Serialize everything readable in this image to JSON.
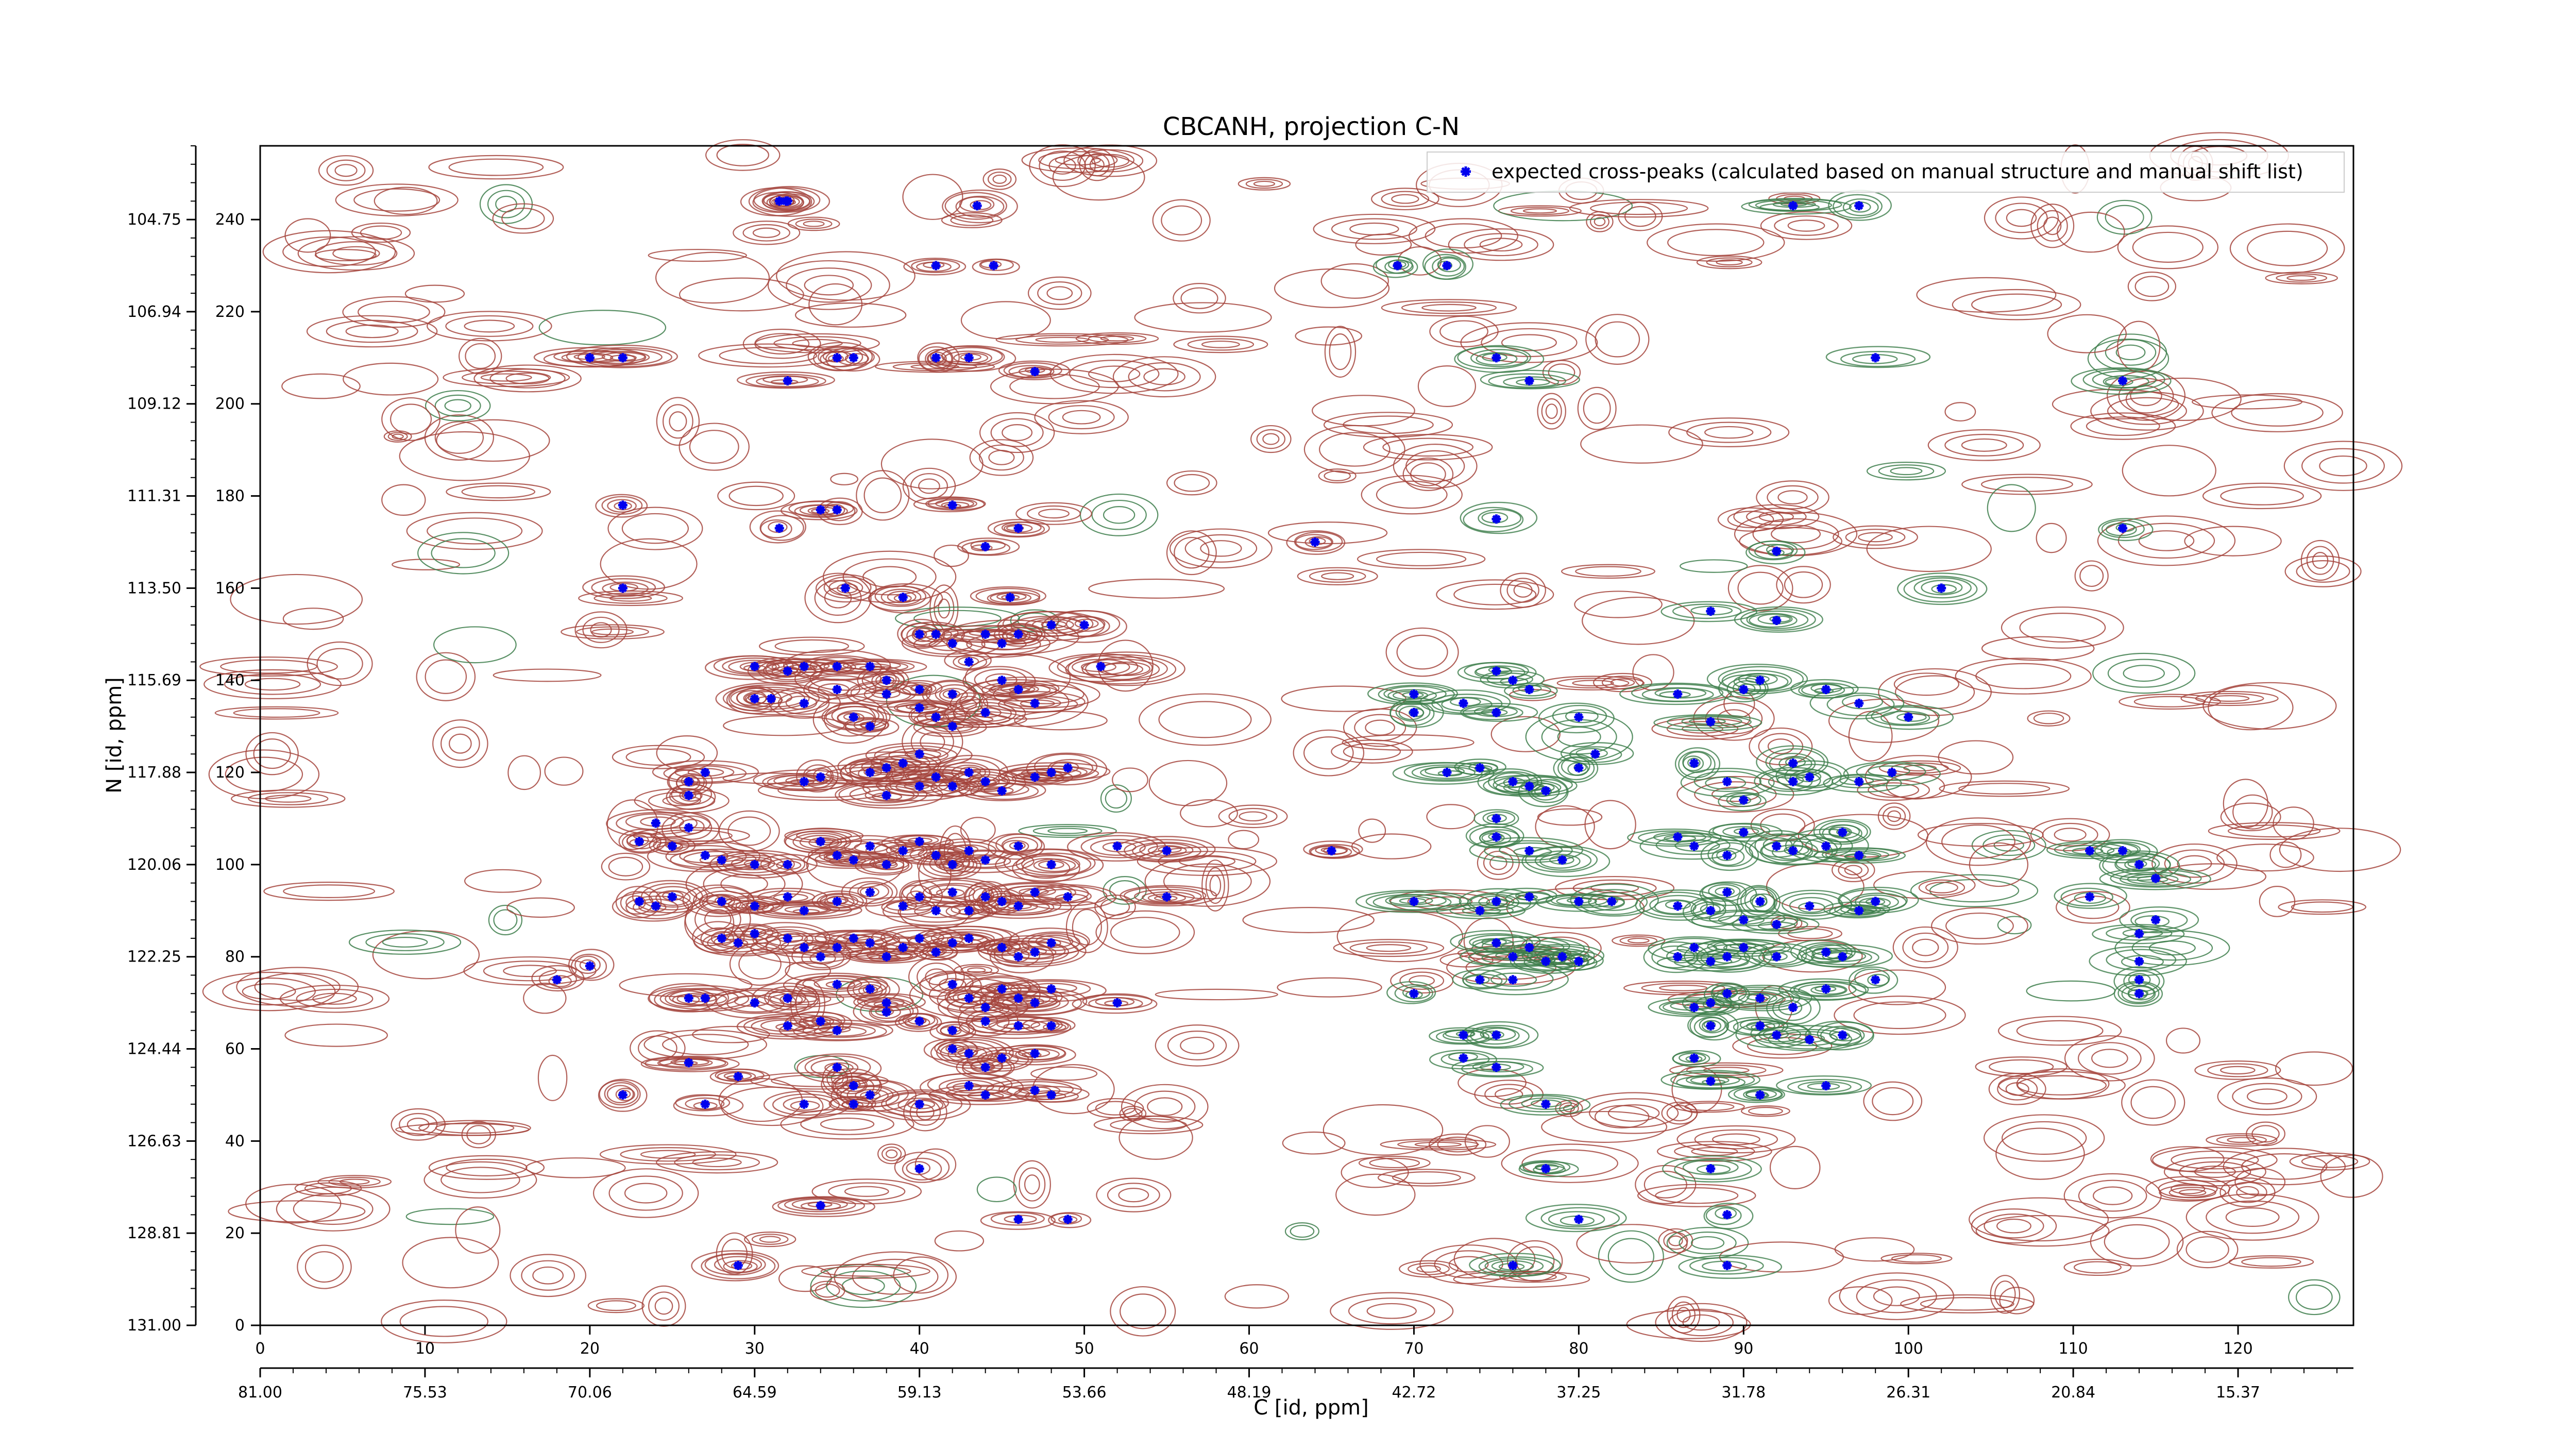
{
  "chart_data": {
    "type": "scatter",
    "title": "CBCANH, projection C-N",
    "xlabel": "C [id, ppm]",
    "ylabel": "N [id, ppm]",
    "x_index_ticks": [
      "0",
      "10",
      "20",
      "30",
      "40",
      "50",
      "60",
      "70",
      "80",
      "90",
      "100",
      "110",
      "120"
    ],
    "x_ppm_ticks": [
      "81.00",
      "75.53",
      "70.06",
      "64.59",
      "59.13",
      "53.66",
      "48.19",
      "42.72",
      "37.25",
      "31.78",
      "26.31",
      "20.84",
      "15.37"
    ],
    "y_index_ticks": [
      "0",
      "20",
      "40",
      "60",
      "80",
      "100",
      "120",
      "140",
      "160",
      "180",
      "200",
      "220",
      "240"
    ],
    "y_ppm_ticks": [
      "131.00",
      "128.81",
      "126.63",
      "124.44",
      "122.25",
      "120.06",
      "117.88",
      "115.69",
      "113.50",
      "111.31",
      "109.12",
      "106.94",
      "104.75"
    ],
    "xlim": [
      0,
      127
    ],
    "ylim": [
      0,
      256
    ],
    "legend": {
      "label": "expected cross-peaks (calculated based on manual structure and manual shift list)",
      "placement": "upper-right",
      "marker_color": "#0000ee"
    },
    "colors": {
      "negative_contour": "#a4443c",
      "positive_contour": "#3c7d4a",
      "marker": "#0000ee"
    },
    "series": [
      {
        "kind": "expected-cross-peaks",
        "points": [
          [
            43.5,
            243
          ],
          [
            31.5,
            244
          ],
          [
            31.9,
            244
          ],
          [
            41,
            230
          ],
          [
            44.5,
            230
          ],
          [
            69,
            230
          ],
          [
            72,
            230
          ],
          [
            20,
            210
          ],
          [
            22,
            210
          ],
          [
            35,
            210
          ],
          [
            36,
            210
          ],
          [
            41,
            210
          ],
          [
            43,
            210
          ],
          [
            47,
            207
          ],
          [
            32,
            205
          ],
          [
            75,
            210
          ],
          [
            77,
            205
          ],
          [
            98,
            210
          ],
          [
            113,
            205
          ],
          [
            22,
            178
          ],
          [
            35,
            177
          ],
          [
            31.5,
            173
          ],
          [
            34,
            177
          ],
          [
            42,
            178
          ],
          [
            46,
            173
          ],
          [
            44,
            169
          ],
          [
            64,
            170
          ],
          [
            75,
            175
          ],
          [
            92,
            168
          ],
          [
            113,
            173
          ],
          [
            22,
            160
          ],
          [
            35.5,
            160
          ],
          [
            39,
            158
          ],
          [
            45.5,
            158
          ],
          [
            48,
            152
          ],
          [
            50,
            152
          ],
          [
            88,
            155
          ],
          [
            92,
            153
          ],
          [
            102,
            160
          ],
          [
            30,
            143
          ],
          [
            32,
            142
          ],
          [
            33,
            143
          ],
          [
            35,
            143
          ],
          [
            37,
            143
          ],
          [
            38,
            140
          ],
          [
            40,
            150
          ],
          [
            41,
            150
          ],
          [
            42,
            148
          ],
          [
            43,
            144
          ],
          [
            44,
            150
          ],
          [
            45,
            148
          ],
          [
            46,
            150
          ],
          [
            51,
            143
          ],
          [
            75,
            142
          ],
          [
            76,
            140
          ],
          [
            77,
            138
          ],
          [
            35,
            138
          ],
          [
            38,
            137
          ],
          [
            40,
            138
          ],
          [
            42,
            137
          ],
          [
            45,
            140
          ],
          [
            46,
            138
          ],
          [
            30,
            136
          ],
          [
            31,
            136
          ],
          [
            33,
            135
          ],
          [
            36,
            132
          ],
          [
            37,
            130
          ],
          [
            40,
            134
          ],
          [
            41,
            132
          ],
          [
            42,
            130
          ],
          [
            44,
            133
          ],
          [
            47,
            135
          ],
          [
            70,
            137
          ],
          [
            70,
            133
          ],
          [
            73,
            135
          ],
          [
            75,
            133
          ],
          [
            80,
            132
          ],
          [
            86,
            137
          ],
          [
            88,
            131
          ],
          [
            90,
            138
          ],
          [
            91,
            140
          ],
          [
            95,
            138
          ],
          [
            97,
            135
          ],
          [
            100,
            132
          ],
          [
            26,
            118
          ],
          [
            26,
            115
          ],
          [
            27,
            120
          ],
          [
            33,
            118
          ],
          [
            34,
            119
          ],
          [
            37,
            120
          ],
          [
            38,
            121
          ],
          [
            38,
            115
          ],
          [
            39,
            122
          ],
          [
            40,
            124
          ],
          [
            40,
            117
          ],
          [
            41,
            119
          ],
          [
            42,
            117
          ],
          [
            43,
            120
          ],
          [
            44,
            118
          ],
          [
            45,
            116
          ],
          [
            47,
            119
          ],
          [
            48,
            120
          ],
          [
            49,
            121
          ],
          [
            72,
            120
          ],
          [
            74,
            121
          ],
          [
            76,
            118
          ],
          [
            77,
            117
          ],
          [
            78,
            116
          ],
          [
            80,
            121
          ],
          [
            81,
            124
          ],
          [
            75,
            110
          ],
          [
            87,
            122
          ],
          [
            89,
            118
          ],
          [
            90,
            114
          ],
          [
            93,
            118
          ],
          [
            93,
            122
          ],
          [
            94,
            119
          ],
          [
            97,
            118
          ],
          [
            99,
            120
          ],
          [
            24,
            109
          ],
          [
            23,
            105
          ],
          [
            26,
            108
          ],
          [
            25,
            104
          ],
          [
            27,
            102
          ],
          [
            28,
            101
          ],
          [
            30,
            100
          ],
          [
            32,
            100
          ],
          [
            34,
            105
          ],
          [
            35,
            102
          ],
          [
            36,
            101
          ],
          [
            37,
            104
          ],
          [
            38,
            100
          ],
          [
            39,
            103
          ],
          [
            40,
            105
          ],
          [
            41,
            102
          ],
          [
            42,
            100
          ],
          [
            43,
            103
          ],
          [
            44,
            101
          ],
          [
            46,
            104
          ],
          [
            48,
            100
          ],
          [
            52,
            104
          ],
          [
            55,
            103
          ],
          [
            65,
            103
          ],
          [
            75,
            106
          ],
          [
            77,
            103
          ],
          [
            79,
            101
          ],
          [
            86,
            106
          ],
          [
            87,
            104
          ],
          [
            89,
            102
          ],
          [
            90,
            107
          ],
          [
            92,
            104
          ],
          [
            93,
            103
          ],
          [
            95,
            104
          ],
          [
            96,
            107
          ],
          [
            97,
            102
          ],
          [
            111,
            103
          ],
          [
            113,
            103
          ],
          [
            114,
            100
          ],
          [
            115,
            97
          ],
          [
            23,
            92
          ],
          [
            24,
            91
          ],
          [
            25,
            93
          ],
          [
            28,
            92
          ],
          [
            30,
            91
          ],
          [
            32,
            93
          ],
          [
            33,
            90
          ],
          [
            35,
            92
          ],
          [
            37,
            94
          ],
          [
            39,
            91
          ],
          [
            40,
            93
          ],
          [
            41,
            90
          ],
          [
            42,
            94
          ],
          [
            43,
            90
          ],
          [
            44,
            93
          ],
          [
            45,
            92
          ],
          [
            46,
            91
          ],
          [
            47,
            94
          ],
          [
            49,
            93
          ],
          [
            55,
            93
          ],
          [
            70,
            92
          ],
          [
            74,
            90
          ],
          [
            75,
            92
          ],
          [
            77,
            93
          ],
          [
            80,
            92
          ],
          [
            82,
            92
          ],
          [
            86,
            91
          ],
          [
            88,
            90
          ],
          [
            89,
            94
          ],
          [
            90,
            88
          ],
          [
            91,
            92
          ],
          [
            92,
            87
          ],
          [
            94,
            91
          ],
          [
            97,
            90
          ],
          [
            98,
            92
          ],
          [
            111,
            93
          ],
          [
            115,
            88
          ],
          [
            114,
            85
          ],
          [
            28,
            84
          ],
          [
            29,
            83
          ],
          [
            30,
            85
          ],
          [
            32,
            84
          ],
          [
            33,
            82
          ],
          [
            34,
            80
          ],
          [
            35,
            82
          ],
          [
            36,
            84
          ],
          [
            37,
            83
          ],
          [
            38,
            80
          ],
          [
            39,
            82
          ],
          [
            40,
            84
          ],
          [
            41,
            81
          ],
          [
            42,
            83
          ],
          [
            43,
            84
          ],
          [
            45,
            82
          ],
          [
            46,
            80
          ],
          [
            47,
            81
          ],
          [
            48,
            83
          ],
          [
            75,
            83
          ],
          [
            76,
            80
          ],
          [
            77,
            82
          ],
          [
            78,
            79
          ],
          [
            79,
            80
          ],
          [
            80,
            79
          ],
          [
            86,
            80
          ],
          [
            87,
            82
          ],
          [
            88,
            79
          ],
          [
            89,
            80
          ],
          [
            90,
            82
          ],
          [
            92,
            80
          ],
          [
            95,
            81
          ],
          [
            96,
            80
          ],
          [
            114,
            79
          ],
          [
            20,
            78
          ],
          [
            18,
            75
          ],
          [
            26,
            71
          ],
          [
            27,
            71
          ],
          [
            30,
            70
          ],
          [
            32,
            71
          ],
          [
            35,
            74
          ],
          [
            37,
            73
          ],
          [
            38,
            70
          ],
          [
            42,
            74
          ],
          [
            43,
            71
          ],
          [
            44,
            69
          ],
          [
            45,
            73
          ],
          [
            46,
            71
          ],
          [
            47,
            70
          ],
          [
            48,
            73
          ],
          [
            52,
            70
          ],
          [
            70,
            72
          ],
          [
            74,
            75
          ],
          [
            76,
            75
          ],
          [
            87,
            69
          ],
          [
            88,
            70
          ],
          [
            89,
            72
          ],
          [
            91,
            71
          ],
          [
            93,
            69
          ],
          [
            95,
            73
          ],
          [
            98,
            75
          ],
          [
            114,
            75
          ],
          [
            114,
            72
          ],
          [
            32,
            65
          ],
          [
            34,
            66
          ],
          [
            35,
            64
          ],
          [
            38,
            68
          ],
          [
            40,
            66
          ],
          [
            42,
            64
          ],
          [
            44,
            66
          ],
          [
            46,
            65
          ],
          [
            48,
            65
          ],
          [
            73,
            63
          ],
          [
            75,
            63
          ],
          [
            88,
            65
          ],
          [
            91,
            65
          ],
          [
            92,
            63
          ],
          [
            94,
            62
          ],
          [
            96,
            63
          ],
          [
            42,
            60
          ],
          [
            43,
            59
          ],
          [
            44,
            56
          ],
          [
            45,
            58
          ],
          [
            47,
            59
          ],
          [
            26,
            57
          ],
          [
            29,
            54
          ],
          [
            35,
            56
          ],
          [
            36,
            52
          ],
          [
            37,
            50
          ],
          [
            73,
            58
          ],
          [
            75,
            56
          ],
          [
            87,
            58
          ],
          [
            88,
            53
          ],
          [
            91,
            50
          ],
          [
            95,
            52
          ],
          [
            22,
            50
          ],
          [
            27,
            48
          ],
          [
            33,
            48
          ],
          [
            36,
            48
          ],
          [
            40,
            48
          ],
          [
            43,
            52
          ],
          [
            44,
            50
          ],
          [
            47,
            51
          ],
          [
            48,
            50
          ],
          [
            78,
            48
          ],
          [
            34,
            26
          ],
          [
            40,
            34
          ],
          [
            46,
            23
          ],
          [
            49,
            23
          ],
          [
            78,
            34
          ],
          [
            88,
            34
          ],
          [
            89,
            24
          ],
          [
            80,
            23
          ],
          [
            29,
            13
          ],
          [
            76,
            13
          ],
          [
            89,
            13
          ],
          [
            32,
            244
          ],
          [
            93,
            243
          ],
          [
            97,
            243
          ]
        ]
      }
    ]
  }
}
